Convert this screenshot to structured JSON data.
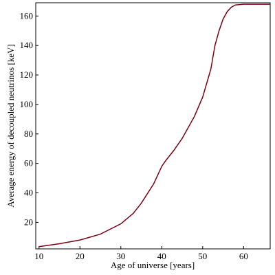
{
  "chart_data": {
    "type": "line",
    "xlabel": "Age of universe [years]",
    "ylabel": "Average energy of decoupled neutrinos  [keV]",
    "x": [
      10,
      15,
      20,
      25,
      30,
      33,
      35,
      38,
      40,
      41,
      43,
      45,
      48,
      50,
      52,
      53,
      54,
      55,
      56,
      57,
      58,
      60,
      63,
      66.5
    ],
    "series": [
      {
        "color": "#7a0010",
        "values": [
          3.5,
          5.5,
          8,
          12,
          19,
          26,
          33,
          46,
          58,
          62,
          69,
          77,
          92,
          105,
          124,
          140,
          150,
          158,
          163,
          166,
          167.5,
          168,
          168,
          168
        ]
      }
    ],
    "xlim": [
      9.2,
      66.5
    ],
    "ylim": [
      2,
      169
    ],
    "xticks": [
      10,
      20,
      30,
      40,
      50,
      60
    ],
    "yticks": [
      20,
      40,
      60,
      80,
      100,
      120,
      140,
      160
    ]
  }
}
